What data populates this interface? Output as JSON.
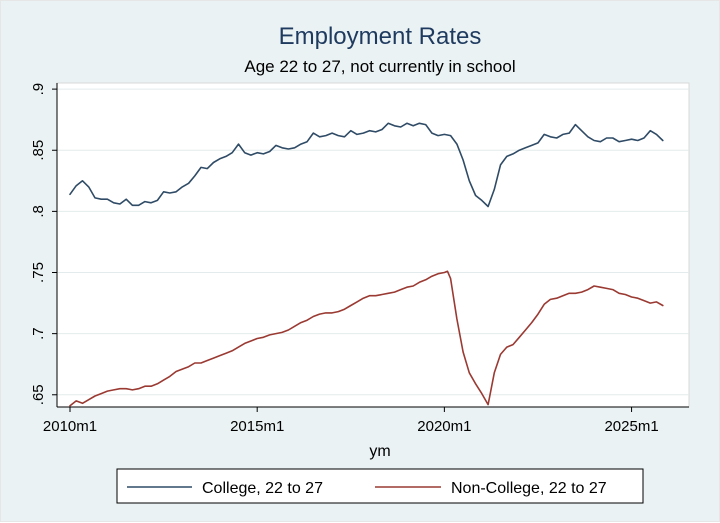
{
  "chart_data": {
    "type": "line",
    "title": "Employment Rates",
    "subtitle": "Age 22 to 27, not currently in school",
    "xlabel": "ym",
    "ylabel": "",
    "x_ticks": [
      "2010m1",
      "2015m1",
      "2020m1",
      "2025m1"
    ],
    "y_ticks": [
      ".65",
      ".7",
      ".75",
      ".8",
      ".85",
      ".9"
    ],
    "xlim": [
      "2010m1",
      "2026m1"
    ],
    "ylim": [
      0.64,
      0.905
    ],
    "grid": true,
    "legend_position": "bottom",
    "series": [
      {
        "name": "College, 22 to 27",
        "color": "#2f4b66",
        "points": [
          [
            "2010m1",
            0.814
          ],
          [
            "2010m3",
            0.821
          ],
          [
            "2010m5",
            0.825
          ],
          [
            "2010m7",
            0.82
          ],
          [
            "2010m9",
            0.811
          ],
          [
            "2010m11",
            0.81
          ],
          [
            "2011m1",
            0.81
          ],
          [
            "2011m3",
            0.807
          ],
          [
            "2011m5",
            0.806
          ],
          [
            "2011m7",
            0.81
          ],
          [
            "2011m9",
            0.805
          ],
          [
            "2011m11",
            0.805
          ],
          [
            "2012m1",
            0.808
          ],
          [
            "2012m3",
            0.807
          ],
          [
            "2012m5",
            0.809
          ],
          [
            "2012m7",
            0.816
          ],
          [
            "2012m9",
            0.815
          ],
          [
            "2012m11",
            0.816
          ],
          [
            "2013m1",
            0.82
          ],
          [
            "2013m3",
            0.823
          ],
          [
            "2013m5",
            0.829
          ],
          [
            "2013m7",
            0.836
          ],
          [
            "2013m9",
            0.835
          ],
          [
            "2013m11",
            0.84
          ],
          [
            "2014m1",
            0.843
          ],
          [
            "2014m3",
            0.845
          ],
          [
            "2014m5",
            0.848
          ],
          [
            "2014m7",
            0.855
          ],
          [
            "2014m9",
            0.848
          ],
          [
            "2014m11",
            0.846
          ],
          [
            "2015m1",
            0.848
          ],
          [
            "2015m3",
            0.847
          ],
          [
            "2015m5",
            0.849
          ],
          [
            "2015m7",
            0.854
          ],
          [
            "2015m9",
            0.852
          ],
          [
            "2015m11",
            0.851
          ],
          [
            "2016m1",
            0.852
          ],
          [
            "2016m3",
            0.855
          ],
          [
            "2016m5",
            0.857
          ],
          [
            "2016m7",
            0.864
          ],
          [
            "2016m9",
            0.861
          ],
          [
            "2016m11",
            0.862
          ],
          [
            "2017m1",
            0.864
          ],
          [
            "2017m3",
            0.862
          ],
          [
            "2017m5",
            0.861
          ],
          [
            "2017m7",
            0.866
          ],
          [
            "2017m9",
            0.863
          ],
          [
            "2017m11",
            0.864
          ],
          [
            "2018m1",
            0.866
          ],
          [
            "2018m3",
            0.865
          ],
          [
            "2018m5",
            0.867
          ],
          [
            "2018m7",
            0.872
          ],
          [
            "2018m9",
            0.87
          ],
          [
            "2018m11",
            0.869
          ],
          [
            "2019m1",
            0.872
          ],
          [
            "2019m3",
            0.87
          ],
          [
            "2019m5",
            0.872
          ],
          [
            "2019m7",
            0.871
          ],
          [
            "2019m9",
            0.864
          ],
          [
            "2019m11",
            0.862
          ],
          [
            "2020m1",
            0.863
          ],
          [
            "2020m3",
            0.862
          ],
          [
            "2020m5",
            0.855
          ],
          [
            "2020m7",
            0.842
          ],
          [
            "2020m9",
            0.825
          ],
          [
            "2020m11",
            0.813
          ],
          [
            "2021m1",
            0.809
          ],
          [
            "2021m3",
            0.804
          ],
          [
            "2021m5",
            0.818
          ],
          [
            "2021m7",
            0.838
          ],
          [
            "2021m9",
            0.845
          ],
          [
            "2021m11",
            0.847
          ],
          [
            "2022m1",
            0.85
          ],
          [
            "2022m3",
            0.852
          ],
          [
            "2022m5",
            0.854
          ],
          [
            "2022m7",
            0.856
          ],
          [
            "2022m9",
            0.863
          ],
          [
            "2022m11",
            0.861
          ],
          [
            "2023m1",
            0.86
          ],
          [
            "2023m3",
            0.863
          ],
          [
            "2023m5",
            0.864
          ],
          [
            "2023m7",
            0.871
          ],
          [
            "2023m9",
            0.866
          ],
          [
            "2023m11",
            0.861
          ],
          [
            "2024m1",
            0.858
          ],
          [
            "2024m3",
            0.857
          ],
          [
            "2024m5",
            0.86
          ],
          [
            "2024m7",
            0.86
          ],
          [
            "2024m9",
            0.857
          ],
          [
            "2024m11",
            0.858
          ],
          [
            "2025m1",
            0.859
          ],
          [
            "2025m3",
            0.858
          ],
          [
            "2025m5",
            0.86
          ],
          [
            "2025m7",
            0.866
          ],
          [
            "2025m9",
            0.863
          ],
          [
            "2025m11",
            0.858
          ]
        ]
      },
      {
        "name": "Non-College, 22 to 27",
        "color": "#9a3a32",
        "points": [
          [
            "2010m1",
            0.641
          ],
          [
            "2010m3",
            0.645
          ],
          [
            "2010m5",
            0.643
          ],
          [
            "2010m7",
            0.646
          ],
          [
            "2010m9",
            0.649
          ],
          [
            "2010m11",
            0.651
          ],
          [
            "2011m1",
            0.653
          ],
          [
            "2011m3",
            0.654
          ],
          [
            "2011m5",
            0.655
          ],
          [
            "2011m7",
            0.655
          ],
          [
            "2011m9",
            0.654
          ],
          [
            "2011m11",
            0.655
          ],
          [
            "2012m1",
            0.657
          ],
          [
            "2012m3",
            0.657
          ],
          [
            "2012m5",
            0.659
          ],
          [
            "2012m7",
            0.662
          ],
          [
            "2012m9",
            0.665
          ],
          [
            "2012m11",
            0.669
          ],
          [
            "2013m1",
            0.671
          ],
          [
            "2013m3",
            0.673
          ],
          [
            "2013m5",
            0.676
          ],
          [
            "2013m7",
            0.676
          ],
          [
            "2013m9",
            0.678
          ],
          [
            "2013m11",
            0.68
          ],
          [
            "2014m1",
            0.682
          ],
          [
            "2014m3",
            0.684
          ],
          [
            "2014m5",
            0.686
          ],
          [
            "2014m7",
            0.689
          ],
          [
            "2014m9",
            0.692
          ],
          [
            "2014m11",
            0.694
          ],
          [
            "2015m1",
            0.696
          ],
          [
            "2015m3",
            0.697
          ],
          [
            "2015m5",
            0.699
          ],
          [
            "2015m7",
            0.7
          ],
          [
            "2015m9",
            0.701
          ],
          [
            "2015m11",
            0.703
          ],
          [
            "2016m1",
            0.706
          ],
          [
            "2016m3",
            0.709
          ],
          [
            "2016m5",
            0.711
          ],
          [
            "2016m7",
            0.714
          ],
          [
            "2016m9",
            0.716
          ],
          [
            "2016m11",
            0.717
          ],
          [
            "2017m1",
            0.717
          ],
          [
            "2017m3",
            0.718
          ],
          [
            "2017m5",
            0.72
          ],
          [
            "2017m7",
            0.723
          ],
          [
            "2017m9",
            0.726
          ],
          [
            "2017m11",
            0.729
          ],
          [
            "2018m1",
            0.731
          ],
          [
            "2018m3",
            0.731
          ],
          [
            "2018m5",
            0.732
          ],
          [
            "2018m7",
            0.733
          ],
          [
            "2018m9",
            0.734
          ],
          [
            "2018m11",
            0.736
          ],
          [
            "2019m1",
            0.738
          ],
          [
            "2019m3",
            0.739
          ],
          [
            "2019m5",
            0.742
          ],
          [
            "2019m7",
            0.744
          ],
          [
            "2019m9",
            0.747
          ],
          [
            "2019m11",
            0.749
          ],
          [
            "2020m1",
            0.75
          ],
          [
            "2020m2",
            0.751
          ],
          [
            "2020m3",
            0.745
          ],
          [
            "2020m5",
            0.712
          ],
          [
            "2020m7",
            0.685
          ],
          [
            "2020m9",
            0.668
          ],
          [
            "2020m11",
            0.659
          ],
          [
            "2021m1",
            0.651
          ],
          [
            "2021m3",
            0.642
          ],
          [
            "2021m5",
            0.668
          ],
          [
            "2021m7",
            0.683
          ],
          [
            "2021m9",
            0.689
          ],
          [
            "2021m11",
            0.691
          ],
          [
            "2022m1",
            0.697
          ],
          [
            "2022m3",
            0.703
          ],
          [
            "2022m5",
            0.709
          ],
          [
            "2022m7",
            0.716
          ],
          [
            "2022m9",
            0.724
          ],
          [
            "2022m11",
            0.728
          ],
          [
            "2023m1",
            0.729
          ],
          [
            "2023m3",
            0.731
          ],
          [
            "2023m5",
            0.733
          ],
          [
            "2023m7",
            0.733
          ],
          [
            "2023m9",
            0.734
          ],
          [
            "2023m11",
            0.736
          ],
          [
            "2024m1",
            0.739
          ],
          [
            "2024m3",
            0.738
          ],
          [
            "2024m5",
            0.737
          ],
          [
            "2024m7",
            0.736
          ],
          [
            "2024m9",
            0.733
          ],
          [
            "2024m11",
            0.732
          ],
          [
            "2025m1",
            0.73
          ],
          [
            "2025m3",
            0.729
          ],
          [
            "2025m5",
            0.727
          ],
          [
            "2025m7",
            0.725
          ],
          [
            "2025m9",
            0.726
          ],
          [
            "2025m11",
            0.723
          ]
        ]
      }
    ]
  }
}
